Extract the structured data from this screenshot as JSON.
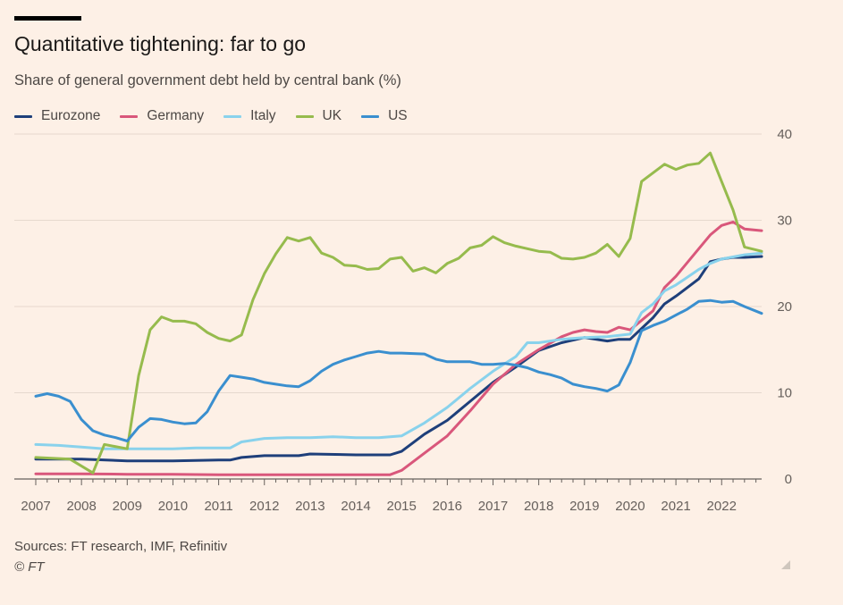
{
  "header": {
    "title": "Quantitative tightening: far to go",
    "subtitle": "Share of general government debt held by central bank (%)"
  },
  "footer": {
    "source": "Sources: FT research, IMF, Refinitiv",
    "copyright": "© FT"
  },
  "colors": {
    "background": "#fdf0e6",
    "gridline": "#e6d9ce",
    "axis": "#66605c"
  },
  "chart_data": {
    "type": "line",
    "title": "Quantitative tightening: far to go",
    "subtitle": "Share of general government debt held by central bank (%)",
    "xlabel": "",
    "ylabel": "",
    "xlim": [
      2007,
      2022.875
    ],
    "ylim": [
      0,
      40
    ],
    "x_ticks": [
      "2007",
      "2008",
      "2009",
      "2010",
      "2011",
      "2012",
      "2013",
      "2014",
      "2015",
      "2016",
      "2017",
      "2018",
      "2019",
      "2020",
      "2021",
      "2022"
    ],
    "y_ticks": [
      "0",
      "10",
      "20",
      "30",
      "40"
    ],
    "y_axis_side": "right",
    "grid": true,
    "legend": "top-left",
    "series": [
      {
        "name": "Eurozone",
        "color": "#1e3f7a",
        "points": [
          [
            2007,
            2.3
          ],
          [
            2008,
            2.3
          ],
          [
            2009,
            2.1
          ],
          [
            2010,
            2.1
          ],
          [
            2011,
            2.2
          ],
          [
            2011.25,
            2.2
          ],
          [
            2011.5,
            2.5
          ],
          [
            2012,
            2.7
          ],
          [
            2012.75,
            2.7
          ],
          [
            2013,
            2.9
          ],
          [
            2014,
            2.8
          ],
          [
            2014.75,
            2.8
          ],
          [
            2015,
            3.2
          ],
          [
            2015.5,
            5.2
          ],
          [
            2016,
            6.8
          ],
          [
            2016.5,
            9.0
          ],
          [
            2017,
            11.2
          ],
          [
            2017.5,
            13.0
          ],
          [
            2018,
            14.9
          ],
          [
            2018.5,
            15.8
          ],
          [
            2019,
            16.4
          ],
          [
            2019.5,
            16.0
          ],
          [
            2019.75,
            16.2
          ],
          [
            2020,
            16.2
          ],
          [
            2020.5,
            18.7
          ],
          [
            2020.75,
            20.3
          ],
          [
            2021,
            21.2
          ],
          [
            2021.5,
            23.2
          ],
          [
            2021.75,
            25.2
          ],
          [
            2022,
            25.5
          ],
          [
            2022.25,
            25.7
          ],
          [
            2022.5,
            25.7
          ],
          [
            2022.875,
            25.8
          ]
        ]
      },
      {
        "name": "Germany",
        "color": "#d9577b",
        "points": [
          [
            2007,
            0.6
          ],
          [
            2008,
            0.6
          ],
          [
            2009,
            0.55
          ],
          [
            2010,
            0.55
          ],
          [
            2011,
            0.5
          ],
          [
            2012,
            0.5
          ],
          [
            2013,
            0.5
          ],
          [
            2014,
            0.5
          ],
          [
            2014.75,
            0.5
          ],
          [
            2015,
            1.0
          ],
          [
            2015.5,
            3.0
          ],
          [
            2016,
            5.0
          ],
          [
            2016.5,
            7.9
          ],
          [
            2017,
            11.0
          ],
          [
            2017.5,
            13.3
          ],
          [
            2018,
            15.0
          ],
          [
            2018.5,
            16.5
          ],
          [
            2018.75,
            17.0
          ],
          [
            2019,
            17.3
          ],
          [
            2019.25,
            17.1
          ],
          [
            2019.5,
            17.0
          ],
          [
            2019.75,
            17.6
          ],
          [
            2020,
            17.3
          ],
          [
            2020.5,
            19.5
          ],
          [
            2020.75,
            22.2
          ],
          [
            2021,
            23.5
          ],
          [
            2021.5,
            26.7
          ],
          [
            2021.75,
            28.3
          ],
          [
            2022,
            29.4
          ],
          [
            2022.25,
            29.8
          ],
          [
            2022.5,
            29.0
          ],
          [
            2022.875,
            28.8
          ]
        ]
      },
      {
        "name": "Italy",
        "color": "#89d2ec",
        "points": [
          [
            2007,
            4.0
          ],
          [
            2007.5,
            3.9
          ],
          [
            2008,
            3.7
          ],
          [
            2008.5,
            3.5
          ],
          [
            2009,
            3.5
          ],
          [
            2010,
            3.5
          ],
          [
            2010.5,
            3.6
          ],
          [
            2011.25,
            3.6
          ],
          [
            2011.5,
            4.3
          ],
          [
            2012,
            4.7
          ],
          [
            2012.5,
            4.8
          ],
          [
            2013,
            4.8
          ],
          [
            2013.5,
            4.9
          ],
          [
            2014,
            4.8
          ],
          [
            2014.5,
            4.8
          ],
          [
            2015,
            5.0
          ],
          [
            2015.5,
            6.5
          ],
          [
            2016,
            8.3
          ],
          [
            2016.5,
            10.5
          ],
          [
            2017,
            12.5
          ],
          [
            2017.5,
            14.2
          ],
          [
            2017.75,
            15.8
          ],
          [
            2018,
            15.8
          ],
          [
            2018.5,
            16.2
          ],
          [
            2019,
            16.4
          ],
          [
            2019.5,
            16.5
          ],
          [
            2020,
            16.8
          ],
          [
            2020.25,
            19.3
          ],
          [
            2020.5,
            20.3
          ],
          [
            2020.75,
            21.8
          ],
          [
            2021,
            22.5
          ],
          [
            2021.5,
            24.3
          ],
          [
            2021.75,
            25.0
          ],
          [
            2022,
            25.5
          ],
          [
            2022.5,
            26.0
          ],
          [
            2022.875,
            26.2
          ]
        ]
      },
      {
        "name": "UK",
        "color": "#96bb4d",
        "points": [
          [
            2007,
            2.5
          ],
          [
            2007.75,
            2.3
          ],
          [
            2008.25,
            0.7
          ],
          [
            2008.5,
            4.0
          ],
          [
            2009,
            3.5
          ],
          [
            2009.25,
            12.0
          ],
          [
            2009.5,
            17.3
          ],
          [
            2009.75,
            18.8
          ],
          [
            2010,
            18.3
          ],
          [
            2010.25,
            18.3
          ],
          [
            2010.5,
            18.0
          ],
          [
            2010.75,
            17.0
          ],
          [
            2011,
            16.3
          ],
          [
            2011.25,
            16.0
          ],
          [
            2011.5,
            16.7
          ],
          [
            2011.75,
            20.8
          ],
          [
            2012,
            23.8
          ],
          [
            2012.25,
            26.1
          ],
          [
            2012.5,
            28.0
          ],
          [
            2012.75,
            27.6
          ],
          [
            2013,
            28.0
          ],
          [
            2013.25,
            26.2
          ],
          [
            2013.5,
            25.7
          ],
          [
            2013.75,
            24.8
          ],
          [
            2014,
            24.7
          ],
          [
            2014.25,
            24.3
          ],
          [
            2014.5,
            24.4
          ],
          [
            2014.75,
            25.5
          ],
          [
            2015,
            25.7
          ],
          [
            2015.25,
            24.1
          ],
          [
            2015.5,
            24.5
          ],
          [
            2015.75,
            23.9
          ],
          [
            2016,
            25.0
          ],
          [
            2016.25,
            25.6
          ],
          [
            2016.5,
            26.8
          ],
          [
            2016.75,
            27.1
          ],
          [
            2017,
            28.1
          ],
          [
            2017.25,
            27.4
          ],
          [
            2017.5,
            27.0
          ],
          [
            2017.75,
            26.7
          ],
          [
            2018,
            26.4
          ],
          [
            2018.25,
            26.3
          ],
          [
            2018.5,
            25.6
          ],
          [
            2018.75,
            25.5
          ],
          [
            2019,
            25.7
          ],
          [
            2019.25,
            26.2
          ],
          [
            2019.5,
            27.2
          ],
          [
            2019.75,
            25.8
          ],
          [
            2020,
            27.9
          ],
          [
            2020.25,
            34.5
          ],
          [
            2020.5,
            35.5
          ],
          [
            2020.75,
            36.5
          ],
          [
            2021,
            35.9
          ],
          [
            2021.25,
            36.4
          ],
          [
            2021.5,
            36.6
          ],
          [
            2021.75,
            37.8
          ],
          [
            2022,
            34.5
          ],
          [
            2022.25,
            31.2
          ],
          [
            2022.5,
            26.9
          ],
          [
            2022.875,
            26.4
          ]
        ]
      },
      {
        "name": "US",
        "color": "#3a8fcf",
        "points": [
          [
            2007,
            9.6
          ],
          [
            2007.25,
            9.9
          ],
          [
            2007.5,
            9.6
          ],
          [
            2007.75,
            9.0
          ],
          [
            2008,
            6.9
          ],
          [
            2008.25,
            5.6
          ],
          [
            2008.5,
            5.1
          ],
          [
            2008.75,
            4.8
          ],
          [
            2009,
            4.4
          ],
          [
            2009.25,
            6.0
          ],
          [
            2009.5,
            7.0
          ],
          [
            2009.75,
            6.9
          ],
          [
            2010,
            6.6
          ],
          [
            2010.25,
            6.4
          ],
          [
            2010.5,
            6.5
          ],
          [
            2010.75,
            7.8
          ],
          [
            2011,
            10.2
          ],
          [
            2011.25,
            12.0
          ],
          [
            2011.5,
            11.8
          ],
          [
            2011.75,
            11.6
          ],
          [
            2012,
            11.2
          ],
          [
            2012.25,
            11.0
          ],
          [
            2012.5,
            10.8
          ],
          [
            2012.75,
            10.7
          ],
          [
            2013,
            11.4
          ],
          [
            2013.25,
            12.5
          ],
          [
            2013.5,
            13.3
          ],
          [
            2013.75,
            13.8
          ],
          [
            2014,
            14.2
          ],
          [
            2014.25,
            14.6
          ],
          [
            2014.5,
            14.8
          ],
          [
            2014.75,
            14.6
          ],
          [
            2015,
            14.6
          ],
          [
            2015.5,
            14.5
          ],
          [
            2015.75,
            13.9
          ],
          [
            2016,
            13.6
          ],
          [
            2016.5,
            13.6
          ],
          [
            2016.75,
            13.3
          ],
          [
            2017,
            13.3
          ],
          [
            2017.25,
            13.4
          ],
          [
            2017.5,
            13.2
          ],
          [
            2017.75,
            12.9
          ],
          [
            2018,
            12.4
          ],
          [
            2018.25,
            12.1
          ],
          [
            2018.5,
            11.7
          ],
          [
            2018.75,
            11.0
          ],
          [
            2019,
            10.7
          ],
          [
            2019.25,
            10.5
          ],
          [
            2019.5,
            10.2
          ],
          [
            2019.75,
            10.9
          ],
          [
            2020,
            13.5
          ],
          [
            2020.25,
            17.2
          ],
          [
            2020.5,
            17.8
          ],
          [
            2020.75,
            18.3
          ],
          [
            2021,
            19.0
          ],
          [
            2021.25,
            19.7
          ],
          [
            2021.5,
            20.6
          ],
          [
            2021.75,
            20.7
          ],
          [
            2022,
            20.5
          ],
          [
            2022.25,
            20.6
          ],
          [
            2022.5,
            20.0
          ],
          [
            2022.875,
            19.2
          ]
        ]
      }
    ]
  }
}
